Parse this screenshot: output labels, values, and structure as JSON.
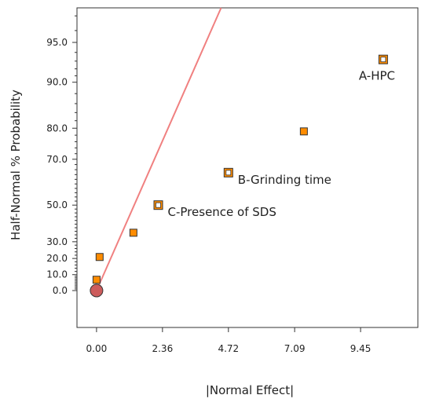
{
  "chart_data": {
    "type": "scatter",
    "title": "",
    "xlabel": "|Normal Effect|",
    "ylabel": "Half-Normal % Probability",
    "x_ticks": [
      0.0,
      2.36,
      4.72,
      7.09,
      9.45
    ],
    "x_tick_labels": [
      "0.00",
      "2.36",
      "4.72",
      "7.09",
      "9.45"
    ],
    "xlim": [
      -0.7,
      11.5
    ],
    "y_ticks": [
      0,
      10,
      20,
      30,
      50,
      70,
      80,
      90,
      95
    ],
    "y_tick_labels": [
      "0.0",
      "10.0",
      "20.0",
      "30.0",
      "50.0",
      "70.0",
      "80.0",
      "90.0",
      "95.0"
    ],
    "points": [
      {
        "x": 0.0,
        "y": 0,
        "shape": "circle",
        "color": "#cd5c5c",
        "label": ""
      },
      {
        "x": 0.0,
        "y": 6.8,
        "shape": "square-filled",
        "color": "#ff8c00",
        "label": ""
      },
      {
        "x": 0.11,
        "y": 20.9,
        "shape": "square-filled",
        "color": "#ff8c00",
        "label": ""
      },
      {
        "x": 1.32,
        "y": 35.2,
        "shape": "square-filled",
        "color": "#ff8c00",
        "label": ""
      },
      {
        "x": 2.21,
        "y": 50.0,
        "shape": "square-hollow",
        "color": "#ff8c00",
        "label": "C-Presence of SDS"
      },
      {
        "x": 4.72,
        "y": 64.8,
        "shape": "square-hollow",
        "color": "#ff8c00",
        "label": "B-Grinding time"
      },
      {
        "x": 7.42,
        "y": 79.1,
        "shape": "square-filled",
        "color": "#ff8c00",
        "label": ""
      },
      {
        "x": 10.26,
        "y": 93.2,
        "shape": "square-hollow",
        "color": "#ff8c00",
        "label": "A-HPC"
      }
    ],
    "reference_line": {
      "x": [
        0.0,
        6.56
      ],
      "y": [
        0,
        100
      ],
      "color": "#f08080"
    },
    "grid": false,
    "legend": "none",
    "colors": {
      "marker_fill": "#ff8c00",
      "marker_edge": "#333333",
      "line": "#f08080",
      "origin": "#cd5c5c"
    }
  }
}
